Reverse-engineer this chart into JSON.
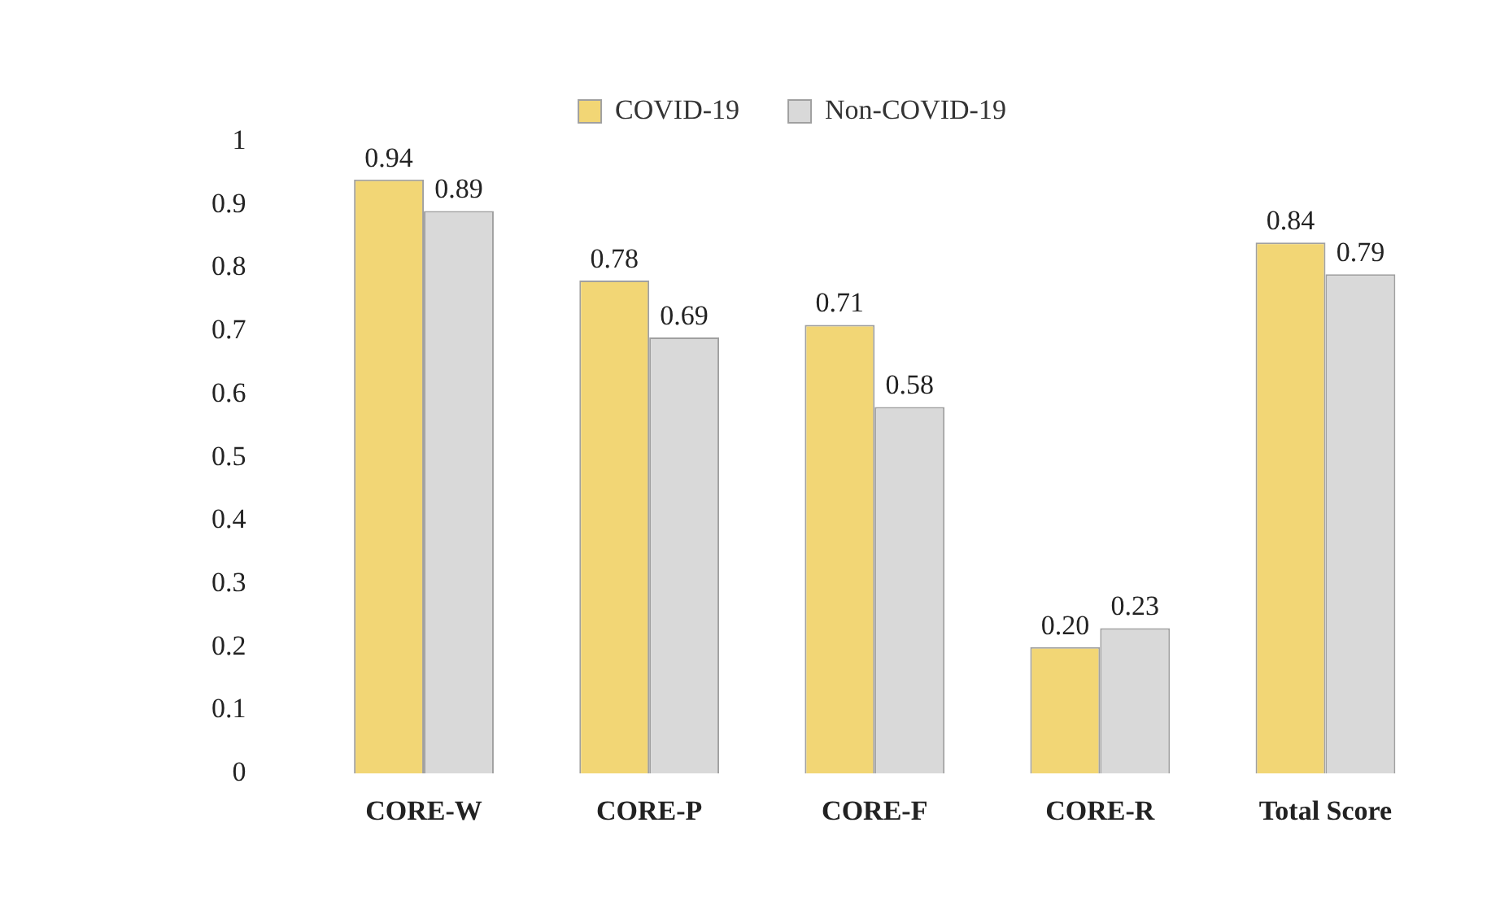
{
  "chart_data": {
    "type": "bar",
    "categories": [
      "CORE-W",
      "CORE-P",
      "CORE-F",
      "CORE-R",
      "Total Score"
    ],
    "series": [
      {
        "name": "COVID-19",
        "color": "#f2d675",
        "values": [
          0.94,
          0.78,
          0.71,
          0.2,
          0.84
        ],
        "value_labels": [
          "0.94",
          "0.78",
          "0.71",
          "0.20",
          "0.84"
        ]
      },
      {
        "name": "Non-COVID-19",
        "color": "#d9d9d9",
        "values": [
          0.89,
          0.69,
          0.58,
          0.23,
          0.79
        ],
        "value_labels": [
          "0.89",
          "0.69",
          "0.58",
          "0.23",
          "0.79"
        ]
      }
    ],
    "ylim": [
      0,
      1
    ],
    "yticks": [
      0,
      0.1,
      0.2,
      0.3,
      0.4,
      0.5,
      0.6,
      0.7,
      0.8,
      0.9,
      1
    ],
    "grid": false,
    "legend": "top"
  }
}
